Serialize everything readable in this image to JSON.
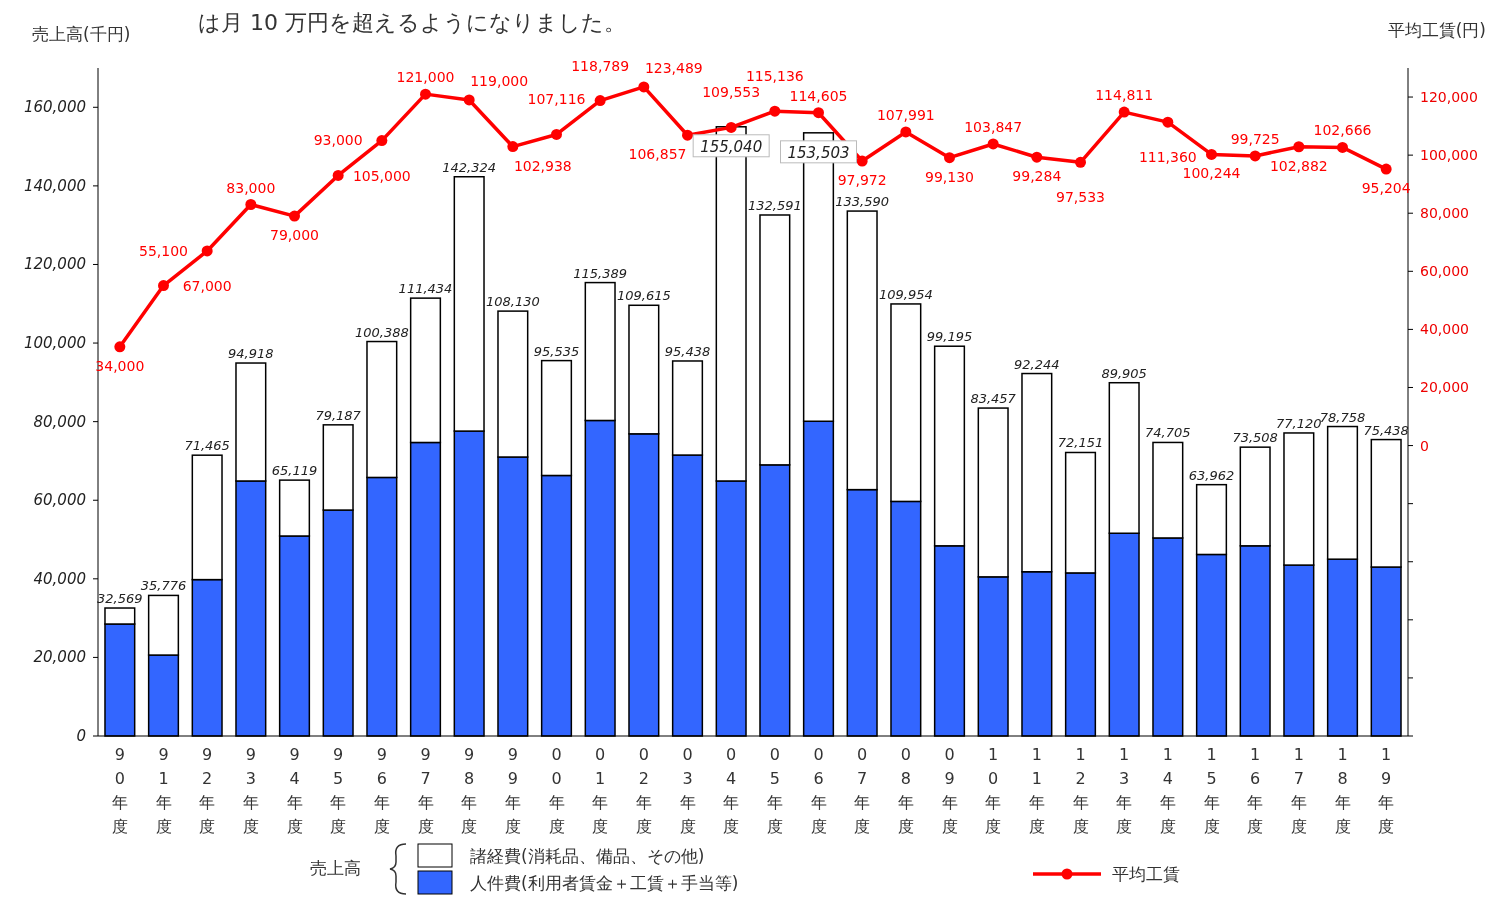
{
  "chart_data": {
    "type": "bar",
    "stacked": true,
    "title": "は月 10 万円を超えるようになりました。",
    "ylabel": "売上高(千円)",
    "y2label": "平均工賃(円)",
    "legend_title": "売上高",
    "legend": "bottom",
    "marker": "circle",
    "categories": [
      "90年度",
      "91年度",
      "92年度",
      "93年度",
      "94年度",
      "95年度",
      "96年度",
      "97年度",
      "98年度",
      "99年度",
      "00年度",
      "01年度",
      "02年度",
      "03年度",
      "04年度",
      "05年度",
      "06年度",
      "07年度",
      "08年度",
      "09年度",
      "10年度",
      "11年度",
      "12年度",
      "13年度",
      "14年度",
      "15年度",
      "16年度",
      "17年度",
      "18年度",
      "19年度"
    ],
    "ylim": [
      0,
      170000
    ],
    "yticks": [
      0,
      {
        "value": 20000,
        "label": "20,000"
      },
      {
        "value": 40000,
        "label": "40,000"
      },
      {
        "value": 60000,
        "label": "60,000"
      },
      {
        "value": 80000,
        "label": "80,000"
      },
      {
        "value": 100000,
        "label": "100,000"
      },
      {
        "value": 120000,
        "label": "120,000"
      },
      {
        "value": 140000,
        "label": "140,000"
      },
      {
        "value": 160000,
        "label": "160,000"
      }
    ],
    "y2lim": [
      -100000,
      130000
    ],
    "y2ticks": [
      {
        "value": -100000,
        "label": null
      },
      {
        "value": -80000,
        "label": null
      },
      {
        "value": -60000,
        "label": null
      },
      {
        "value": -40000,
        "label": null
      },
      {
        "value": -20000,
        "label": null
      },
      0,
      {
        "value": 20000,
        "label": "20,000"
      },
      {
        "value": 40000,
        "label": "40,000"
      },
      {
        "value": 60000,
        "label": "60,000"
      },
      {
        "value": 80000,
        "label": "80,000"
      },
      {
        "value": 100000,
        "label": "100,000"
      },
      {
        "value": 120000,
        "label": "120,000"
      }
    ],
    "series": [
      {
        "name": "人件費(利用者賃金＋工賃＋手当等)",
        "type": "bar",
        "color": "#3366ff",
        "values": [
          28500,
          20600,
          39800,
          64900,
          50900,
          57500,
          65800,
          74700,
          77600,
          71000,
          66300,
          80300,
          76900,
          71500,
          64900,
          69000,
          80100,
          62700,
          59700,
          48400,
          40500,
          41800,
          41500,
          51600,
          50400,
          46200,
          48400,
          43500,
          45000,
          43000
        ]
      },
      {
        "name": "諸経費(消耗品、備品、その他)",
        "type": "bar",
        "color": "#ffffff",
        "values": [
          4069,
          15176,
          31665,
          30018,
          14219,
          21687,
          34588,
          36734,
          64724,
          37130,
          29235,
          35089,
          32715,
          23938,
          90140,
          63591,
          73403,
          70890,
          50254,
          50795,
          42957,
          50444,
          30651,
          38305,
          24305,
          17762,
          25108,
          33620,
          33758,
          32438
        ]
      },
      {
        "name": "平均工賃",
        "type": "line",
        "axis": "y2",
        "color": "#ff0000",
        "values": [
          34000,
          55100,
          67000,
          83000,
          79000,
          93000,
          105000,
          121000,
          119000,
          102938,
          107116,
          118789,
          123489,
          106857,
          109553,
          115136,
          114605,
          97972,
          107991,
          99130,
          103847,
          99284,
          97533,
          114811,
          111360,
          100244,
          99725,
          102882,
          102666,
          95204
        ],
        "value_labels": [
          "34,000",
          "55,100",
          "67,000",
          "83,000",
          "79,000",
          "93,000",
          "105,000",
          "121,000",
          "119,000",
          "102,938",
          "107,116",
          "118,789",
          "123,489",
          "106,857",
          "109,553",
          "115,136",
          "114,605",
          "97,972",
          "107,991",
          "99,130",
          "103,847",
          "99,284",
          "97,533",
          "114,811",
          "111,360",
          "100,244",
          "99,725",
          "102,882",
          "102,666",
          "95,204"
        ]
      }
    ],
    "totals": [
      "32,569",
      "35,776",
      "71,465",
      "94,918",
      "65,119",
      "79,187",
      "100,388",
      "111,434",
      "142,324",
      "108,130",
      "95,535",
      "115,389",
      "109,615",
      "95,438",
      "155,040",
      "132,591",
      "153,503",
      "133,590",
      "109,954",
      "99,195",
      "83,457",
      "92,244",
      "72,151",
      "89,905",
      "74,705",
      "63,962",
      "73,508",
      "77,120",
      "78,758",
      "75,438"
    ]
  }
}
